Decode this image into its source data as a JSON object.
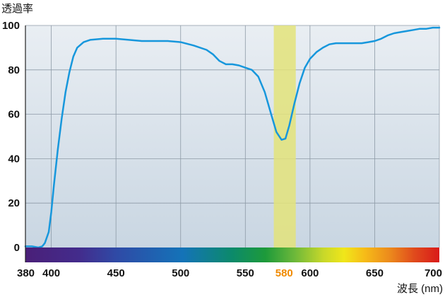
{
  "chart_data": {
    "type": "line",
    "ylabel": "透過率",
    "xlabel": "波長 (nm)",
    "xlim": [
      380,
      700
    ],
    "ylim": [
      0,
      100
    ],
    "x_ticks": [
      380,
      400,
      450,
      500,
      550,
      580,
      600,
      650,
      700
    ],
    "highlight_tick": 580,
    "y_ticks": [
      0,
      20,
      40,
      60,
      80,
      100
    ],
    "grid": true,
    "legend": "none",
    "highlight_band": {
      "x_start": 572,
      "x_end": 589,
      "color": "#e3e37a"
    },
    "spectrum_bar": true,
    "series": [
      {
        "color": "#1797dc",
        "points": [
          [
            380,
            0.5
          ],
          [
            385,
            0.5
          ],
          [
            390,
            0
          ],
          [
            393,
            0.5
          ],
          [
            395,
            2
          ],
          [
            398,
            7
          ],
          [
            400,
            16
          ],
          [
            402,
            28
          ],
          [
            405,
            44
          ],
          [
            408,
            58
          ],
          [
            411,
            70
          ],
          [
            414,
            79
          ],
          [
            417,
            86
          ],
          [
            420,
            90
          ],
          [
            425,
            92.5
          ],
          [
            430,
            93.5
          ],
          [
            440,
            94
          ],
          [
            450,
            94
          ],
          [
            460,
            93.5
          ],
          [
            470,
            93
          ],
          [
            480,
            93
          ],
          [
            490,
            93
          ],
          [
            500,
            92.5
          ],
          [
            510,
            91
          ],
          [
            520,
            89
          ],
          [
            525,
            87
          ],
          [
            530,
            84
          ],
          [
            535,
            82.5
          ],
          [
            540,
            82.5
          ],
          [
            545,
            82
          ],
          [
            550,
            81
          ],
          [
            555,
            80
          ],
          [
            560,
            77
          ],
          [
            565,
            70
          ],
          [
            570,
            60
          ],
          [
            574,
            52
          ],
          [
            578,
            48.5
          ],
          [
            581,
            49
          ],
          [
            584,
            55
          ],
          [
            588,
            65
          ],
          [
            592,
            74
          ],
          [
            596,
            81
          ],
          [
            600,
            85
          ],
          [
            605,
            88
          ],
          [
            610,
            90
          ],
          [
            615,
            91.5
          ],
          [
            620,
            92
          ],
          [
            630,
            92
          ],
          [
            640,
            92
          ],
          [
            645,
            92.5
          ],
          [
            650,
            93
          ],
          [
            655,
            94
          ],
          [
            660,
            95.5
          ],
          [
            665,
            96.5
          ],
          [
            670,
            97
          ],
          [
            675,
            97.5
          ],
          [
            680,
            98
          ],
          [
            685,
            98.5
          ],
          [
            690,
            98.5
          ],
          [
            695,
            99
          ],
          [
            700,
            99
          ]
        ]
      }
    ]
  }
}
